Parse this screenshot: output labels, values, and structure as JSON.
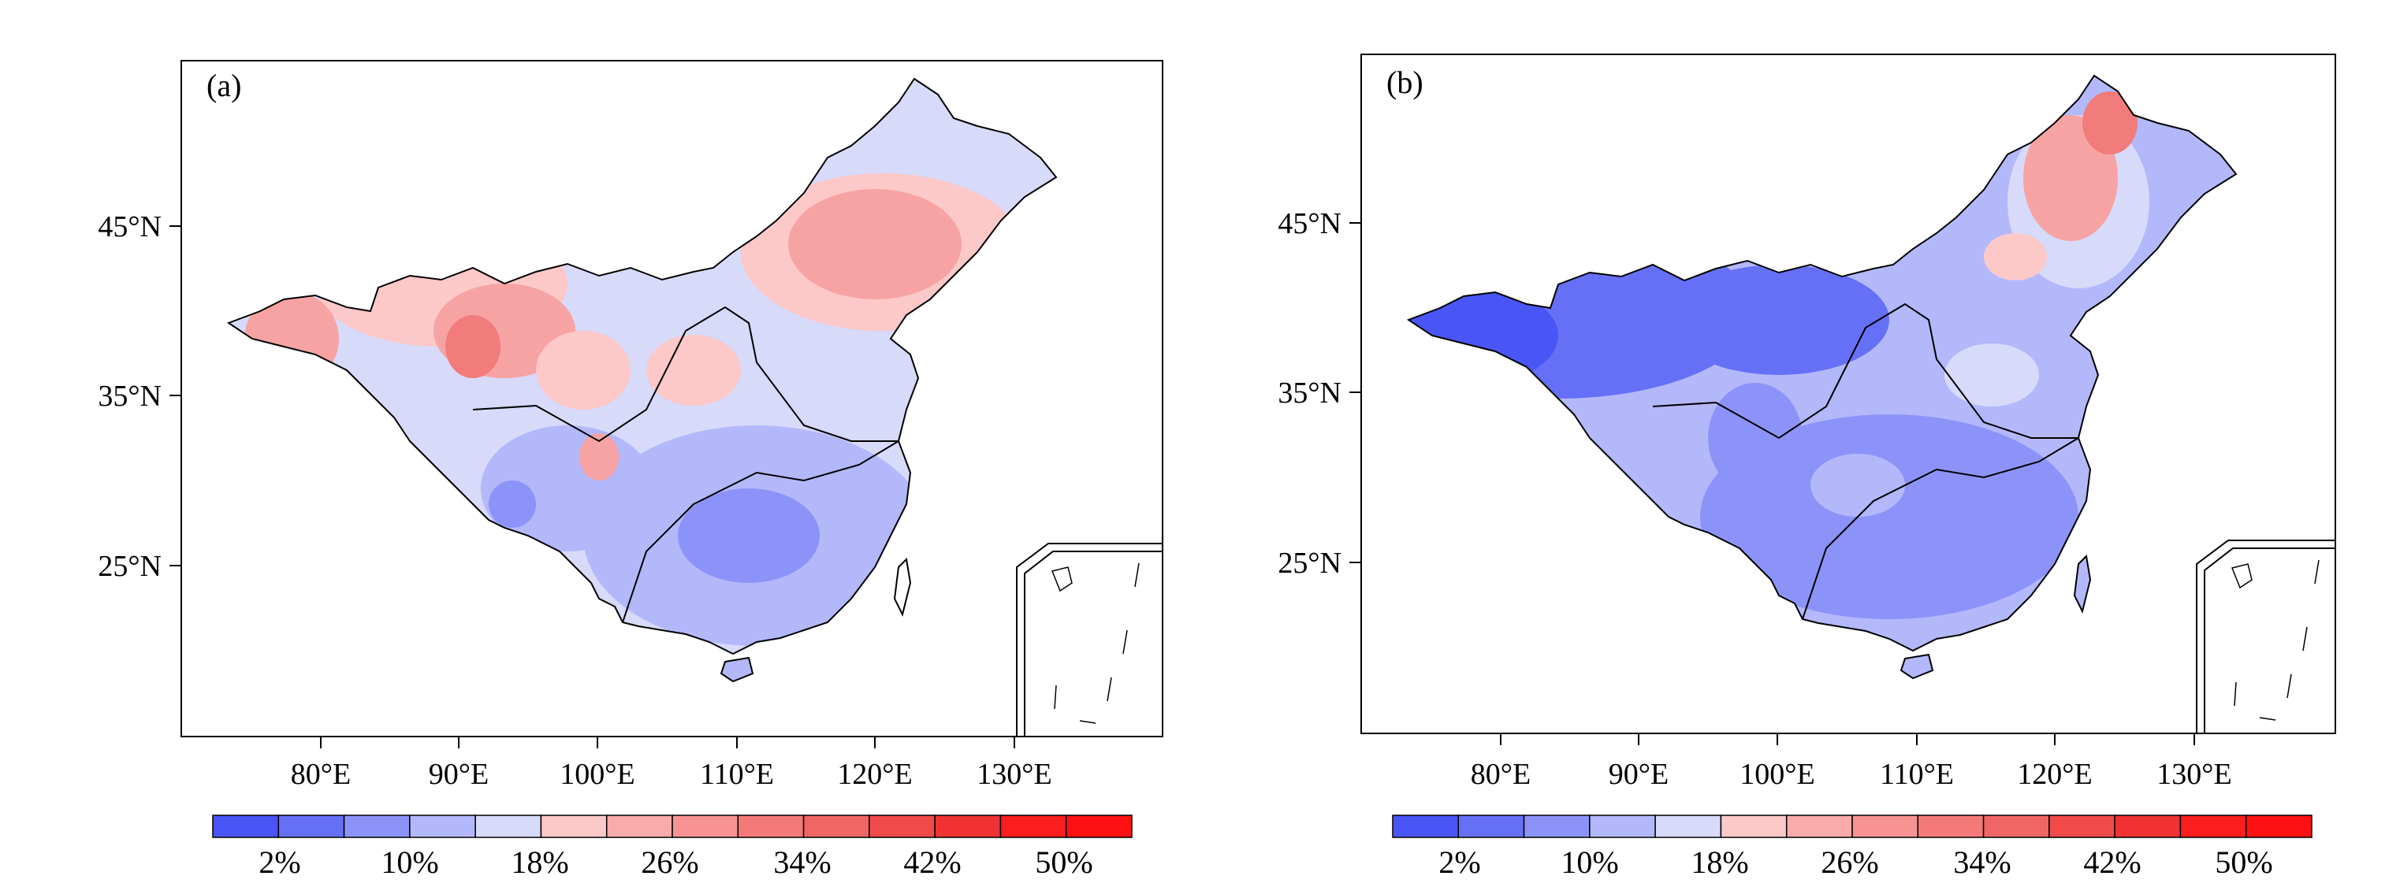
{
  "panels": [
    {
      "label": "(a)",
      "lat_labels": [
        "45°N",
        "35°N",
        "25°N"
      ],
      "lon_labels": [
        "80°E",
        "90°E",
        "100°E",
        "110°E",
        "120°E",
        "130°E"
      ],
      "colorbar_labels": [
        "2%",
        "10%",
        "18%",
        "26%",
        "34%",
        "42%",
        "50%"
      ]
    },
    {
      "label": "(b)",
      "lat_labels": [
        "45°N",
        "35°N",
        "25°N"
      ],
      "lon_labels": [
        "80°E",
        "90°E",
        "100°E",
        "110°E",
        "120°E",
        "130°E"
      ],
      "colorbar_labels": [
        "2%",
        "10%",
        "18%",
        "26%",
        "34%",
        "42%",
        "50%"
      ]
    }
  ],
  "colorbar_colors": [
    "#4a55f5",
    "#6670f7",
    "#8c93f8",
    "#b3b8fb",
    "#d7daf9",
    "#fcc8c8",
    "#f9aaaa",
    "#f79393",
    "#f47a7a",
    "#f26565",
    "#f04a4a",
    "#f03232",
    "#fa1e1e",
    "#ff1111"
  ],
  "map_colors": {
    "blue_dark": "#5a63f2",
    "blue_mid": "#8c93f8",
    "blue_light": "#b3b8fb",
    "blue_pale": "#d7daf9",
    "red_pale": "#fcc8c8",
    "red_light": "#f7a3a3",
    "red_mid": "#f27b7b",
    "border": "#000000"
  }
}
